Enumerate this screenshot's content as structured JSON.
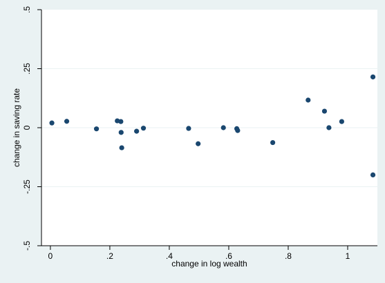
{
  "chart_data": {
    "type": "scatter",
    "title": "",
    "xlabel": "change in log wealth",
    "ylabel": "change in saving rate",
    "xlim": [
      -0.03,
      1.1
    ],
    "ylim": [
      -0.5,
      0.5
    ],
    "x_ticks": [
      {
        "value": 0,
        "label": "0"
      },
      {
        "value": 0.2,
        "label": ".2"
      },
      {
        "value": 0.4,
        "label": ".4"
      },
      {
        "value": 0.6,
        "label": ".6"
      },
      {
        "value": 0.8,
        "label": ".8"
      },
      {
        "value": 1,
        "label": "1"
      }
    ],
    "y_ticks": [
      {
        "value": 0.5,
        "label": ".5"
      },
      {
        "value": 0.25,
        "label": ".25"
      },
      {
        "value": 0,
        "label": "0"
      },
      {
        "value": -0.25,
        "label": "-.25"
      },
      {
        "value": -0.5,
        "label": "-.5"
      }
    ],
    "grid": "horizontal",
    "marker_color": "#1a476f",
    "points": [
      {
        "x": 0.005,
        "y": 0.02
      },
      {
        "x": 0.055,
        "y": 0.027
      },
      {
        "x": 0.155,
        "y": -0.005
      },
      {
        "x": 0.225,
        "y": 0.029
      },
      {
        "x": 0.237,
        "y": 0.026
      },
      {
        "x": 0.238,
        "y": -0.02
      },
      {
        "x": 0.24,
        "y": -0.085
      },
      {
        "x": 0.29,
        "y": -0.015
      },
      {
        "x": 0.313,
        "y": -0.002
      },
      {
        "x": 0.465,
        "y": -0.003
      },
      {
        "x": 0.497,
        "y": -0.068
      },
      {
        "x": 0.582,
        "y": 0
      },
      {
        "x": 0.627,
        "y": -0.004
      },
      {
        "x": 0.63,
        "y": -0.012
      },
      {
        "x": 0.748,
        "y": -0.063
      },
      {
        "x": 0.867,
        "y": 0.117
      },
      {
        "x": 0.922,
        "y": 0.07
      },
      {
        "x": 0.937,
        "y": 0
      },
      {
        "x": 0.98,
        "y": 0.026
      },
      {
        "x": 1.085,
        "y": 0.215
      },
      {
        "x": 1.085,
        "y": -0.2
      }
    ]
  }
}
